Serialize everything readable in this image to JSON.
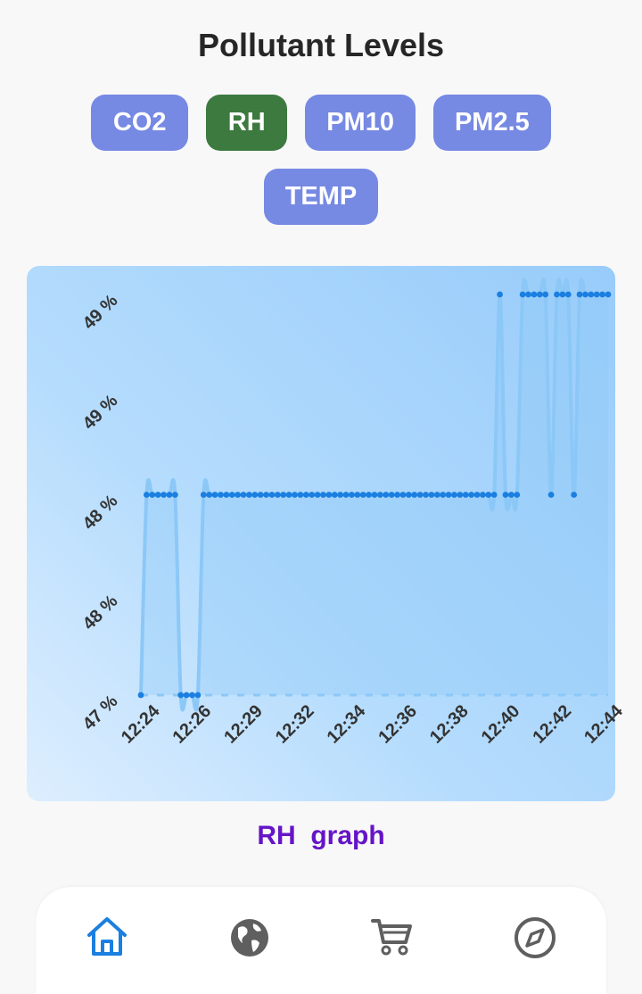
{
  "header": {
    "title": "Pollutant Levels"
  },
  "tabs": [
    {
      "label": "CO2",
      "active": false
    },
    {
      "label": "RH",
      "active": true
    },
    {
      "label": "PM10",
      "active": false
    },
    {
      "label": "PM2.5",
      "active": false
    },
    {
      "label": "TEMP",
      "active": false
    }
  ],
  "colors": {
    "tab": "#7689e3",
    "tab_active": "#3c7a3f",
    "line": "#8cc8f7",
    "point": "#1a7fe0",
    "caption": "#6614c7",
    "nav_active": "#1a7fe0",
    "nav_inactive": "#5f5f5f"
  },
  "caption": "RH  graph",
  "nav": [
    {
      "icon": "home-icon",
      "active": true
    },
    {
      "icon": "globe-icon",
      "active": false
    },
    {
      "icon": "cart-icon",
      "active": false
    },
    {
      "icon": "compass-icon",
      "active": false
    }
  ],
  "chart_data": {
    "type": "line",
    "title": "",
    "xlabel": "",
    "ylabel": "",
    "y_tick_labels": [
      "47 %",
      "48 %",
      "48 %",
      "49 %",
      "49 %"
    ],
    "x_tick_labels": [
      "12:24",
      "12:26",
      "12:29",
      "12:32",
      "12:34",
      "12:36",
      "12:38",
      "12:40",
      "12:42",
      "12:44"
    ],
    "ylim": [
      47,
      49
    ],
    "grid": false,
    "series": [
      {
        "values": [
          47,
          48,
          48,
          48,
          48,
          48,
          48,
          47,
          47,
          47,
          47,
          48,
          48,
          48,
          48,
          48,
          48,
          48,
          48,
          48,
          48,
          48,
          48,
          48,
          48,
          48,
          48,
          48,
          48,
          48,
          48,
          48,
          48,
          48,
          48,
          48,
          48,
          48,
          48,
          48,
          48,
          48,
          48,
          48,
          48,
          48,
          48,
          48,
          48,
          48,
          48,
          48,
          48,
          48,
          48,
          48,
          48,
          48,
          48,
          48,
          48,
          48,
          48,
          49,
          48,
          48,
          48,
          49,
          49,
          49,
          49,
          49,
          48,
          49,
          49,
          49,
          48,
          49,
          49,
          49,
          49,
          49,
          49
        ]
      }
    ]
  }
}
